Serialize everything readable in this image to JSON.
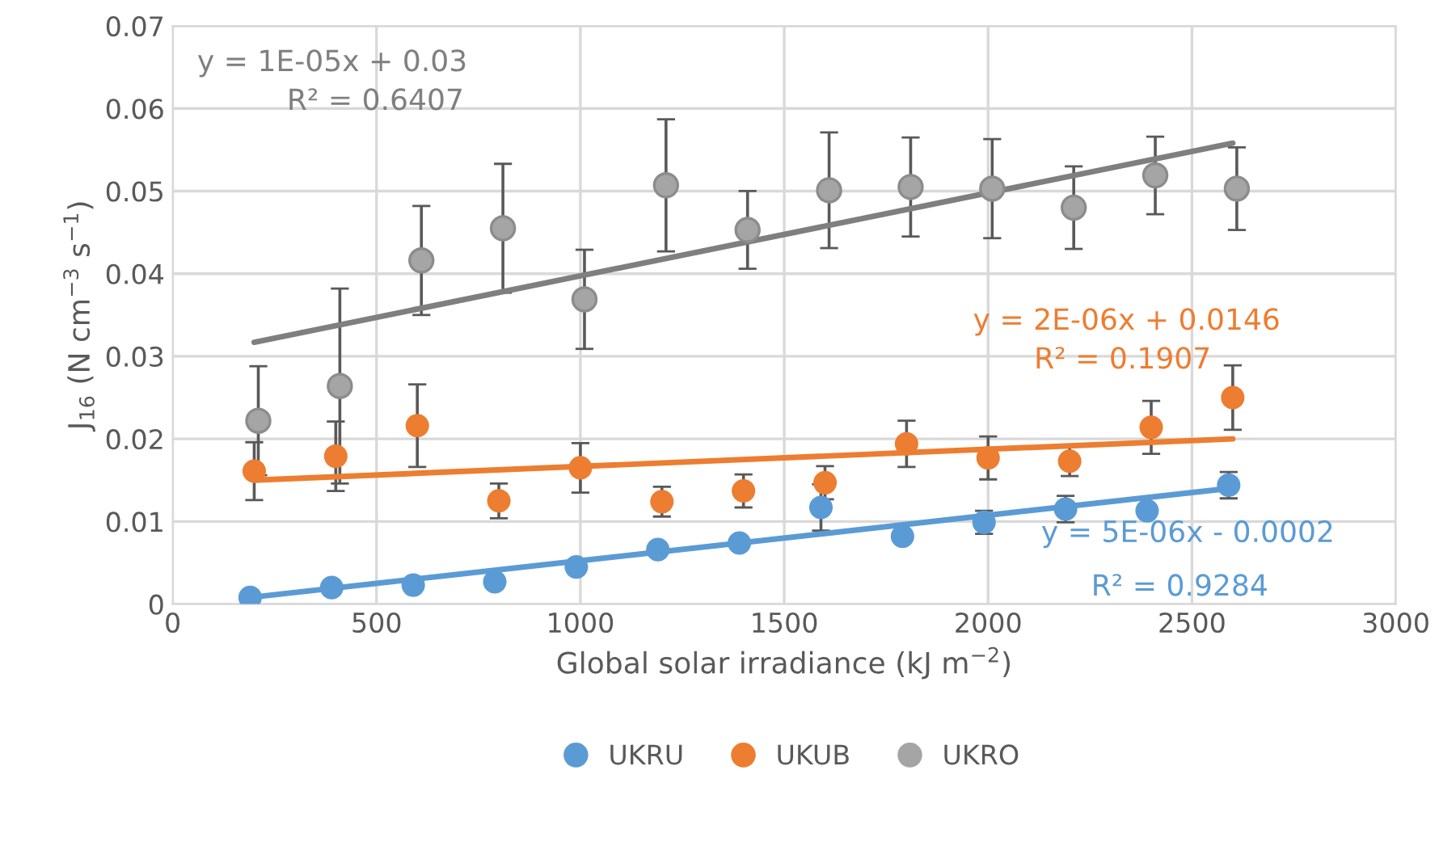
{
  "chart_data": {
    "type": "scatter",
    "xlabel": "Global solar irradiance (kJ m$^{−2}$)",
    "ylabel": "J$_{16}$ (N cm$^{−3}$ s$^{−1}$)",
    "xlim": [
      0,
      3000
    ],
    "xticks": [
      0,
      500,
      1000,
      1500,
      2000,
      2500,
      3000
    ],
    "ylim": [
      0,
      0.07
    ],
    "yticks": [
      0,
      0.01,
      0.02,
      0.03,
      0.04,
      0.05,
      0.06,
      0.07
    ],
    "grid": true,
    "legend": "bottom",
    "marker": "circle",
    "series": [
      {
        "name": "UKRU",
        "color": "#5b9bd5",
        "x": [
          190,
          390,
          590,
          790,
          990,
          1190,
          1390,
          1590,
          1790,
          1990,
          2190,
          2390,
          2590
        ],
        "values": [
          0.0008,
          0.002,
          0.0023,
          0.0027,
          0.0045,
          0.0066,
          0.0074,
          0.0117,
          0.0082,
          0.0099,
          0.0115,
          0.0113,
          0.0144
        ],
        "errors": [
          null,
          null,
          null,
          null,
          null,
          null,
          null,
          0.0028,
          null,
          0.0014,
          0.0016,
          null,
          0.0016
        ]
      },
      {
        "name": "UKUB",
        "color": "#ed7d31",
        "x": [
          200,
          400,
          600,
          800,
          1000,
          1200,
          1400,
          1600,
          1800,
          2000,
          2200,
          2400,
          2600
        ],
        "values": [
          0.0161,
          0.0179,
          0.0216,
          0.0125,
          0.0165,
          0.0124,
          0.0137,
          0.0147,
          0.0194,
          0.0177,
          0.0173,
          0.0214,
          0.025
        ],
        "errors": [
          0.0035,
          0.0042,
          0.005,
          0.0021,
          0.003,
          0.0018,
          0.002,
          0.002,
          0.0028,
          0.0026,
          0.0018,
          0.0032,
          0.0039
        ]
      },
      {
        "name": "UKRO",
        "color": "#a5a5a5",
        "x": [
          210,
          410,
          610,
          810,
          1010,
          1210,
          1410,
          1610,
          1810,
          2010,
          2210,
          2410,
          2610
        ],
        "values": [
          0.0222,
          0.0264,
          0.0416,
          0.0455,
          0.0369,
          0.0507,
          0.0453,
          0.0501,
          0.0505,
          0.0503,
          0.048,
          0.0519,
          0.0503
        ],
        "errors": [
          0.0066,
          0.0118,
          0.0066,
          0.0078,
          0.006,
          0.008,
          0.0047,
          0.007,
          0.006,
          0.006,
          0.005,
          0.0047,
          0.005
        ]
      },
      {
        "type": "line",
        "marker": "none",
        "color": "#5b9bd5",
        "x": [
          190,
          2590
        ],
        "values": [
          0.0008,
          0.014
        ]
      },
      {
        "type": "line",
        "marker": "none",
        "color": "#ed7d31",
        "x": [
          200,
          2600
        ],
        "values": [
          0.015,
          0.02
        ]
      },
      {
        "type": "line",
        "marker": "none",
        "color": "#7f7f7f",
        "x": [
          200,
          2600
        ],
        "values": [
          0.0317,
          0.0558
        ]
      }
    ],
    "annotations": [
      "y = 1E-05x + 0.03",
      "R² = 0.6407",
      "y = 2E-06x + 0.0146",
      "R² = 0.1907",
      "y = 5E-06x - 0.0002",
      "R² = 0.9284"
    ]
  }
}
